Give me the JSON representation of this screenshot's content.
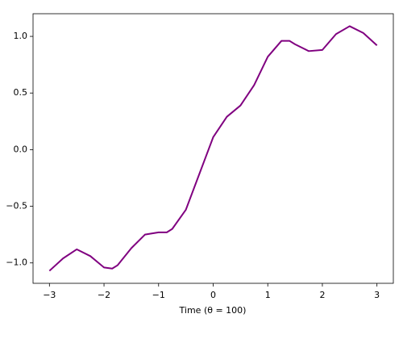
{
  "chart_data": {
    "type": "line",
    "x_label": "Time (θ = 100)",
    "x": [
      -3,
      -2.75,
      -2.5,
      -2.25,
      -2,
      -1.85,
      -1.75,
      -1.5,
      -1.25,
      -1,
      -0.85,
      -0.75,
      -0.5,
      -0.25,
      0,
      0.25,
      0.5,
      0.75,
      1,
      1.25,
      1.4,
      1.5,
      1.75,
      2,
      2.25,
      2.5,
      2.75,
      3
    ],
    "series": [
      {
        "color": "#800080",
        "values": [
          -1.07,
          -0.96,
          -0.88,
          -0.94,
          -1.04,
          -1.05,
          -1.02,
          -0.87,
          -0.75,
          -0.73,
          -0.73,
          -0.7,
          -0.53,
          -0.21,
          0.11,
          0.29,
          0.39,
          0.57,
          0.82,
          0.96,
          0.96,
          0.93,
          0.87,
          0.88,
          1.02,
          1.09,
          1.03,
          0.92
        ]
      }
    ],
    "xlim": [
      -3.3,
      3.3
    ],
    "ylim": [
      -1.18,
      1.2
    ],
    "xticks": [
      {
        "value": -3,
        "label": "−3"
      },
      {
        "value": -2,
        "label": "−2"
      },
      {
        "value": -1,
        "label": "−1"
      },
      0,
      1,
      2,
      3
    ],
    "yticks": [
      {
        "value": -1,
        "label": "−1.0"
      },
      {
        "value": -0.5,
        "label": "−0.5"
      },
      {
        "value": 0,
        "label": "0.0"
      },
      0.5,
      {
        "value": 1,
        "label": "1.0"
      }
    ]
  }
}
